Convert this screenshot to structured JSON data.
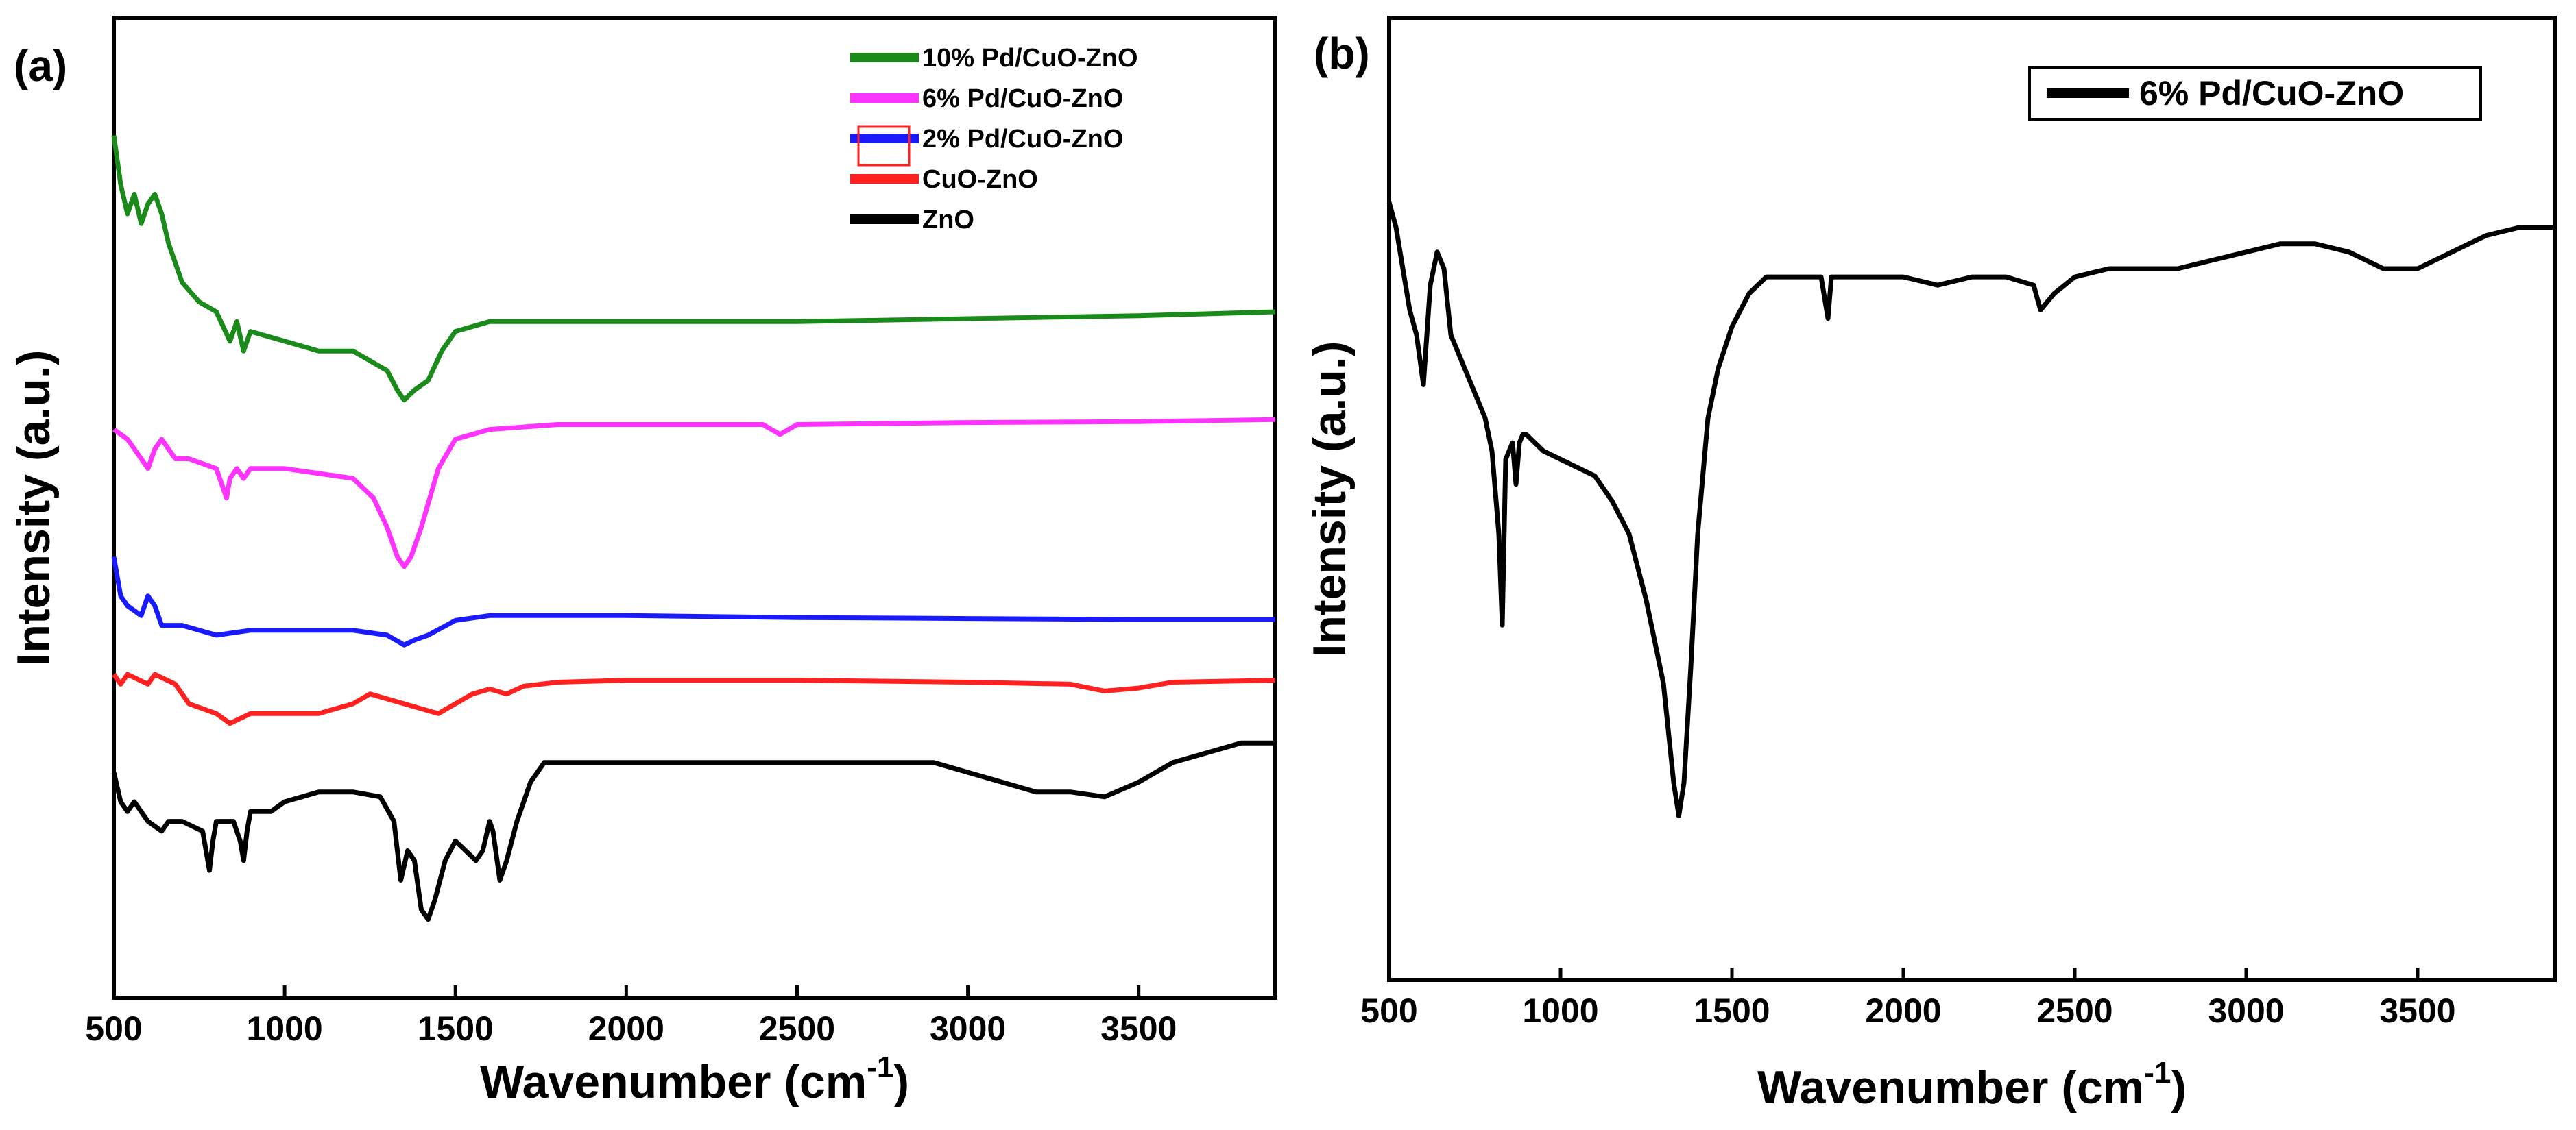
{
  "figure": {
    "panels": [
      {
        "label": "(a)"
      },
      {
        "label": "(b)"
      }
    ]
  },
  "chart_data": [
    {
      "type": "line",
      "panel": "(a)",
      "title": "",
      "xlabel": "Wavenumber (cm",
      "xlabel_sup": "-1",
      "xlabel_close": ")",
      "ylabel": "Intensity (a.u.)",
      "xlim": [
        500,
        3900
      ],
      "ylim": [
        0,
        100
      ],
      "xticks": [
        500,
        1000,
        1500,
        2000,
        2500,
        3000,
        3500
      ],
      "xtick_labels": [
        "500",
        "1000",
        "1500",
        "2000",
        "2500",
        "3000",
        "3500"
      ],
      "show_yticks": false,
      "legend_position": "top-right",
      "series": [
        {
          "name": "10% Pd/CuO-ZnO",
          "color": "#1a8a1a",
          "x": [
            500,
            520,
            540,
            560,
            580,
            600,
            620,
            640,
            660,
            700,
            750,
            800,
            840,
            860,
            880,
            900,
            1000,
            1100,
            1200,
            1250,
            1300,
            1330,
            1350,
            1380,
            1420,
            1460,
            1500,
            1600,
            1800,
            2000,
            2500,
            3000,
            3500,
            3900
          ],
          "y": [
            88,
            83,
            80,
            82,
            79,
            81,
            82,
            80,
            77,
            73,
            71,
            70,
            67,
            69,
            66,
            68,
            67,
            66,
            66,
            65,
            64,
            62,
            61,
            62,
            63,
            66,
            68,
            69,
            69,
            69,
            69,
            69.3,
            69.6,
            70
          ]
        },
        {
          "name": "6% Pd/CuO-ZnO",
          "color": "#ff33ff",
          "x": [
            500,
            540,
            580,
            600,
            620,
            640,
            680,
            720,
            800,
            830,
            840,
            860,
            880,
            900,
            1000,
            1100,
            1200,
            1260,
            1300,
            1330,
            1350,
            1370,
            1400,
            1450,
            1500,
            1600,
            1800,
            2000,
            2400,
            2450,
            2500,
            3000,
            3500,
            3900
          ],
          "y": [
            58,
            57,
            55,
            54,
            56,
            57,
            55,
            55,
            54,
            51,
            53,
            54,
            53,
            54,
            54,
            53.5,
            53,
            51,
            48,
            45,
            44,
            45,
            48,
            54,
            57,
            58,
            58.5,
            58.5,
            58.5,
            57.5,
            58.5,
            58.7,
            58.8,
            59
          ]
        },
        {
          "name": "2% Pd/CuO-ZnO",
          "color": "#1a1aff",
          "x": [
            500,
            520,
            540,
            580,
            600,
            620,
            640,
            700,
            800,
            900,
            1000,
            1200,
            1300,
            1350,
            1380,
            1420,
            1500,
            1600,
            2000,
            2500,
            3000,
            3500,
            3900
          ],
          "y": [
            45,
            41,
            40,
            39,
            41,
            40,
            38,
            38,
            37,
            37.5,
            37.5,
            37.5,
            37,
            36,
            36.5,
            37,
            38.5,
            39,
            39,
            38.8,
            38.7,
            38.6,
            38.6
          ]
        },
        {
          "name": "CuO-ZnO",
          "color": "#ff2020",
          "x": [
            500,
            520,
            540,
            600,
            620,
            680,
            720,
            800,
            840,
            900,
            1000,
            1100,
            1200,
            1250,
            1300,
            1350,
            1400,
            1450,
            1500,
            1550,
            1600,
            1650,
            1700,
            1800,
            2000,
            2500,
            3000,
            3300,
            3400,
            3500,
            3600,
            3900
          ],
          "y": [
            33,
            32,
            33,
            32,
            33,
            32,
            30,
            29,
            28,
            29,
            29,
            29,
            30,
            31,
            30.5,
            30,
            29.5,
            29,
            30,
            31,
            31.5,
            31,
            31.8,
            32.2,
            32.4,
            32.4,
            32.2,
            32,
            31.3,
            31.6,
            32.2,
            32.4
          ]
        },
        {
          "name": "ZnO",
          "color": "#000000",
          "x": [
            500,
            520,
            540,
            560,
            600,
            640,
            660,
            700,
            760,
            780,
            790,
            800,
            850,
            870,
            880,
            890,
            900,
            960,
            1000,
            1100,
            1200,
            1280,
            1320,
            1340,
            1360,
            1380,
            1400,
            1420,
            1440,
            1470,
            1500,
            1530,
            1560,
            1580,
            1600,
            1610,
            1630,
            1650,
            1680,
            1720,
            1760,
            1800,
            2000,
            2500,
            2900,
            3000,
            3100,
            3200,
            3300,
            3400,
            3500,
            3600,
            3700,
            3800,
            3900
          ],
          "y": [
            23,
            20,
            19,
            20,
            18,
            17,
            18,
            18,
            17,
            13,
            16,
            18,
            18,
            16,
            14,
            17,
            19,
            19,
            20,
            21,
            21,
            20.5,
            18,
            12,
            15,
            14,
            9,
            8,
            10,
            14,
            16,
            15,
            14,
            15,
            18,
            17,
            12,
            14,
            18,
            22,
            24,
            24,
            24,
            24,
            24,
            23,
            22,
            21,
            21,
            20.5,
            22,
            24,
            25,
            26,
            26
          ]
        }
      ]
    },
    {
      "type": "line",
      "panel": "(b)",
      "title": "",
      "xlabel": "Wavenumber (cm",
      "xlabel_sup": "-1",
      "xlabel_close": ")",
      "ylabel": "Intensity (a.u.)",
      "xlim": [
        500,
        3900
      ],
      "ylim": [
        0,
        100
      ],
      "xticks": [
        500,
        1000,
        1500,
        2000,
        2500,
        3000,
        3500
      ],
      "xtick_labels": [
        "500",
        "1000",
        "1500",
        "2000",
        "2500",
        "3000",
        "3500"
      ],
      "show_yticks": false,
      "legend_position": "top-right",
      "series": [
        {
          "name": "6% Pd/CuO-ZnO",
          "color": "#000000",
          "x": [
            500,
            520,
            540,
            560,
            580,
            600,
            620,
            640,
            660,
            680,
            700,
            740,
            780,
            800,
            820,
            830,
            840,
            860,
            870,
            880,
            890,
            900,
            950,
            1000,
            1050,
            1100,
            1150,
            1200,
            1250,
            1300,
            1330,
            1345,
            1360,
            1380,
            1400,
            1430,
            1460,
            1500,
            1550,
            1600,
            1700,
            1760,
            1780,
            1790,
            1800,
            1900,
            2000,
            2100,
            2200,
            2300,
            2380,
            2400,
            2420,
            2440,
            2500,
            2600,
            2700,
            2800,
            2900,
            3000,
            3100,
            3200,
            3300,
            3400,
            3500,
            3600,
            3700,
            3800,
            3900
          ],
          "y": [
            88,
            85,
            80,
            75,
            72,
            66,
            78,
            82,
            80,
            72,
            70,
            66,
            62,
            58,
            48,
            37,
            57,
            59,
            54,
            59,
            60,
            60,
            58,
            57,
            56,
            55,
            52,
            48,
            40,
            30,
            18,
            14,
            18,
            32,
            48,
            62,
            68,
            73,
            77,
            79,
            79,
            79,
            74,
            79,
            79,
            79,
            79,
            78,
            79,
            79,
            78,
            75,
            76,
            77,
            79,
            80,
            80,
            80,
            81,
            82,
            83,
            83,
            82,
            80,
            80,
            82,
            84,
            85,
            85
          ]
        }
      ]
    }
  ]
}
